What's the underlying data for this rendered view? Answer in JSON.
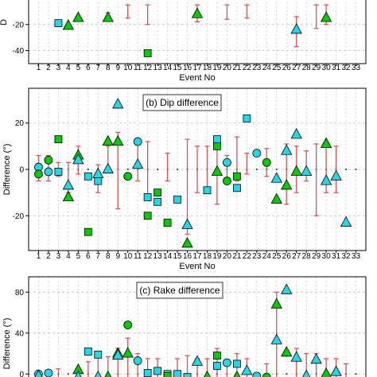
{
  "chart_data": [
    {
      "type": "scatter",
      "title": "",
      "xlabel": "Event No",
      "ylabel": "",
      "xlim": [
        0,
        34
      ],
      "ylim": [
        -50,
        0
      ],
      "yticks": [
        -40,
        -20
      ],
      "xticks": [
        1,
        2,
        3,
        4,
        5,
        6,
        7,
        8,
        9,
        10,
        11,
        12,
        13,
        14,
        15,
        16,
        17,
        18,
        19,
        20,
        21,
        22,
        23,
        24,
        25,
        26,
        27,
        28,
        29,
        30,
        31,
        32,
        33
      ],
      "grid": "dashed",
      "series": [
        {
          "marker": "square",
          "color": "#00cc00",
          "points": [
            [
              12,
              -42
            ]
          ]
        },
        {
          "marker": "square",
          "color": "#22d8e8",
          "points": [
            [
              3,
              -19
            ]
          ]
        },
        {
          "marker": "triangle",
          "color": "#00cc00",
          "points": [
            [
              4,
              -21
            ],
            [
              5,
              -15
            ],
            [
              8,
              -15
            ],
            [
              17,
              -12
            ],
            [
              30,
              -15
            ]
          ]
        },
        {
          "marker": "triangle",
          "color": "#22d8e8",
          "points": [
            [
              27,
              -24
            ]
          ]
        }
      ],
      "error_bars": [
        [
          4,
          -21,
          -21
        ],
        [
          8,
          -15,
          -11
        ],
        [
          10,
          -15,
          -5
        ],
        [
          12,
          -20,
          -5
        ],
        [
          17,
          -18,
          -5
        ],
        [
          20,
          -16,
          -5
        ],
        [
          22,
          -15,
          -5
        ],
        [
          27,
          -37,
          -14
        ],
        [
          29,
          -23,
          -5
        ],
        [
          30,
          -20,
          -5
        ]
      ]
    },
    {
      "type": "scatter",
      "title": "(b) Dip difference",
      "xlabel": "Event No",
      "ylabel": "Difference (°)",
      "xlim": [
        0,
        34
      ],
      "ylim": [
        -35,
        35
      ],
      "yticks": [
        -20,
        0,
        20
      ],
      "xticks": [
        1,
        2,
        3,
        4,
        5,
        6,
        7,
        8,
        9,
        10,
        11,
        12,
        13,
        14,
        15,
        16,
        17,
        18,
        19,
        20,
        21,
        22,
        23,
        24,
        25,
        26,
        27,
        28,
        29,
        30,
        31,
        32,
        33
      ],
      "grid": "dashed",
      "series": [
        {
          "marker": "circle",
          "color": "#22d8e8",
          "points": [
            [
              1,
              1
            ],
            [
              2,
              -1
            ],
            [
              11,
              12
            ],
            [
              20,
              3
            ],
            [
              23,
              7
            ]
          ]
        },
        {
          "marker": "circle",
          "color": "#00cc00",
          "points": [
            [
              1,
              -2
            ],
            [
              2,
              4
            ],
            [
              10,
              -3
            ],
            [
              20,
              -5
            ],
            [
              24,
              3
            ]
          ]
        },
        {
          "marker": "square",
          "color": "#00cc00",
          "points": [
            [
              3,
              13
            ],
            [
              6,
              -27
            ],
            [
              12,
              -20
            ],
            [
              13,
              -10
            ],
            [
              14,
              -23
            ],
            [
              19,
              10
            ],
            [
              21,
              -3
            ]
          ]
        },
        {
          "marker": "square",
          "color": "#22d8e8",
          "points": [
            [
              3,
              -1
            ],
            [
              6,
              -3
            ],
            [
              7,
              -5
            ],
            [
              12,
              -12
            ],
            [
              13,
              -14
            ],
            [
              15,
              -13
            ],
            [
              18,
              -9
            ],
            [
              19,
              13
            ],
            [
              21,
              -8
            ],
            [
              22,
              22
            ]
          ]
        },
        {
          "marker": "triangle",
          "color": "#00cc00",
          "points": [
            [
              4,
              -12
            ],
            [
              5,
              6
            ],
            [
              8,
              12
            ],
            [
              9,
              12
            ],
            [
              16,
              -32
            ],
            [
              19,
              -1
            ],
            [
              25,
              -13
            ],
            [
              26,
              -7
            ],
            [
              27,
              -1
            ],
            [
              30,
              11
            ]
          ]
        },
        {
          "marker": "triangle",
          "color": "#22d8e8",
          "points": [
            [
              4,
              -7
            ],
            [
              5,
              4
            ],
            [
              7,
              -2
            ],
            [
              8,
              0
            ],
            [
              9,
              28
            ],
            [
              11,
              2
            ],
            [
              16,
              -24
            ],
            [
              25,
              -4
            ],
            [
              26,
              8
            ],
            [
              27,
              15
            ],
            [
              28,
              -1
            ],
            [
              30,
              -5
            ],
            [
              31,
              -3
            ],
            [
              32,
              -23
            ]
          ]
        }
      ],
      "error_bars": [
        [
          1,
          -5,
          6
        ],
        [
          2,
          -5,
          6
        ],
        [
          3,
          -3,
          3
        ],
        [
          4,
          -10,
          3
        ],
        [
          5,
          -2,
          10
        ],
        [
          7,
          -10,
          2
        ],
        [
          8,
          0,
          10
        ],
        [
          9,
          -17,
          16
        ],
        [
          11,
          -5,
          13
        ],
        [
          12,
          -12,
          12
        ],
        [
          14,
          -5,
          7
        ],
        [
          16,
          -28,
          13
        ],
        [
          17,
          -10,
          10
        ],
        [
          18,
          -10,
          10
        ],
        [
          19,
          -15,
          11
        ],
        [
          20,
          -6,
          6
        ],
        [
          21,
          -5,
          14
        ],
        [
          22,
          -2,
          7
        ],
        [
          24,
          -3,
          9
        ],
        [
          26,
          -15,
          11
        ],
        [
          27,
          -10,
          10
        ],
        [
          28,
          -5,
          8
        ],
        [
          29,
          -20,
          11
        ],
        [
          30,
          -10,
          10
        ],
        [
          31,
          -10,
          10
        ]
      ]
    },
    {
      "type": "scatter",
      "title": "(c) Rake difference",
      "xlabel": "",
      "ylabel": "Difference (°)",
      "xlim": [
        0,
        34
      ],
      "ylim": [
        -6,
        95
      ],
      "yticks": [
        0,
        40,
        80
      ],
      "xticks": [],
      "grid": "dashed",
      "series": [
        {
          "marker": "circle",
          "color": "#22d8e8",
          "points": [
            [
              1,
              0
            ],
            [
              2,
              1
            ],
            [
              11,
              13
            ],
            [
              20,
              11
            ],
            [
              23,
              -2
            ]
          ]
        },
        {
          "marker": "circle",
          "color": "#00cc00",
          "points": [
            [
              10,
              48
            ],
            [
              24,
              -3
            ]
          ]
        },
        {
          "marker": "square",
          "color": "#22d8e8",
          "points": [
            [
              6,
              22
            ],
            [
              7,
              19
            ],
            [
              12,
              1
            ],
            [
              13,
              3
            ],
            [
              14,
              0
            ],
            [
              15,
              0
            ],
            [
              16,
              -3
            ],
            [
              19,
              8
            ],
            [
              21,
              10
            ]
          ]
        },
        {
          "marker": "square",
          "color": "#00cc00",
          "points": [
            [
              14,
              -2
            ],
            [
              19,
              18
            ]
          ]
        },
        {
          "marker": "triangle",
          "color": "#00cc00",
          "points": [
            [
              5,
              4
            ],
            [
              8,
              -3
            ],
            [
              9,
              20
            ],
            [
              10,
              20
            ],
            [
              18,
              -3
            ],
            [
              21,
              -3
            ],
            [
              25,
              68
            ],
            [
              26,
              21
            ],
            [
              30,
              0
            ]
          ]
        },
        {
          "marker": "triangle",
          "color": "#22d8e8",
          "points": [
            [
              1,
              -2
            ],
            [
              5,
              -3
            ],
            [
              7,
              -3
            ],
            [
              9,
              18
            ],
            [
              17,
              12
            ],
            [
              22,
              3
            ],
            [
              25,
              33
            ],
            [
              26,
              82
            ],
            [
              27,
              16
            ],
            [
              28,
              -2
            ],
            [
              29,
              14
            ],
            [
              31,
              2
            ]
          ]
        }
      ],
      "error_bars": [
        [
          3,
          -5,
          5
        ],
        [
          6,
          -5,
          12
        ],
        [
          7,
          -3,
          20
        ],
        [
          8,
          -3,
          17
        ],
        [
          9,
          -5,
          25
        ],
        [
          10,
          -5,
          35
        ],
        [
          11,
          -5,
          20
        ],
        [
          12,
          -5,
          15
        ],
        [
          13,
          -5,
          15
        ],
        [
          15,
          -5,
          15
        ],
        [
          16,
          -5,
          18
        ],
        [
          17,
          -5,
          15
        ],
        [
          18,
          -5,
          15
        ],
        [
          19,
          -5,
          25
        ],
        [
          20,
          -5,
          12
        ],
        [
          21,
          -5,
          20
        ],
        [
          22,
          -5,
          15
        ],
        [
          24,
          -5,
          10
        ],
        [
          25,
          -5,
          80
        ],
        [
          27,
          -5,
          25
        ],
        [
          28,
          -5,
          20
        ],
        [
          29,
          -5,
          20
        ],
        [
          30,
          -5,
          15
        ],
        [
          31,
          -5,
          15
        ],
        [
          32,
          -5,
          10
        ]
      ]
    }
  ],
  "colors": {
    "green": "#00cc00",
    "cyan": "#22d8e8",
    "error_bar": "#e05050",
    "grid": "#bbbbbb"
  }
}
